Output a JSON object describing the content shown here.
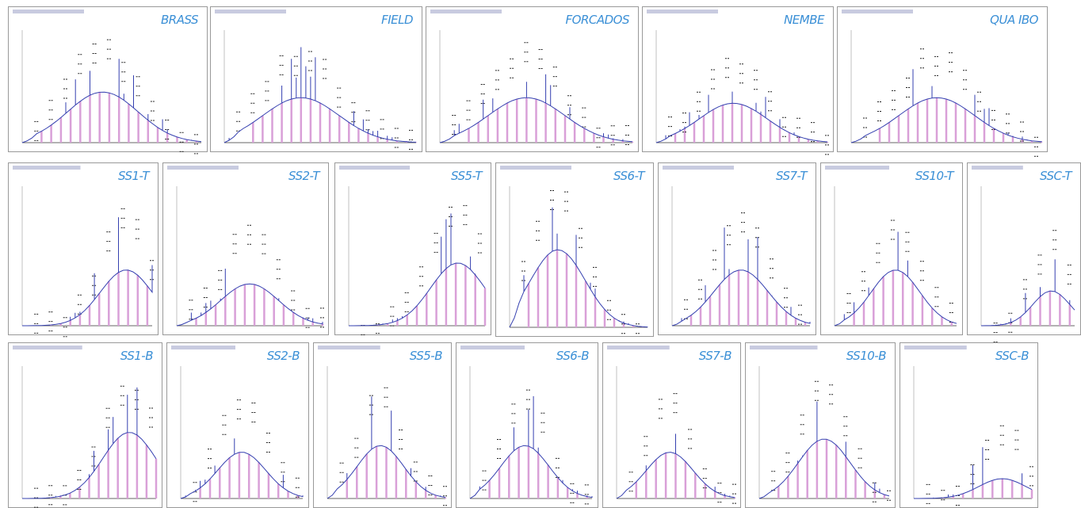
{
  "panels": [
    {
      "label": "BRASS"
    },
    {
      "label": "FIELD"
    },
    {
      "label": "FORCADOS"
    },
    {
      "label": "NEMBE"
    },
    {
      "label": "QUA IBO"
    },
    {
      "label": "SS1-T"
    },
    {
      "label": "SS2-T"
    },
    {
      "label": "SS5-T"
    },
    {
      "label": "SS6-T"
    },
    {
      "label": "SS7-T"
    },
    {
      "label": "SS10-T"
    },
    {
      "label": "SSC-T"
    },
    {
      "label": "SS1-B"
    },
    {
      "label": "SS2-B"
    },
    {
      "label": "SS5-B"
    },
    {
      "label": "SS6-B"
    },
    {
      "label": "SS7-B"
    },
    {
      "label": "SS10-B"
    },
    {
      "label": "SSC-B"
    }
  ]
}
